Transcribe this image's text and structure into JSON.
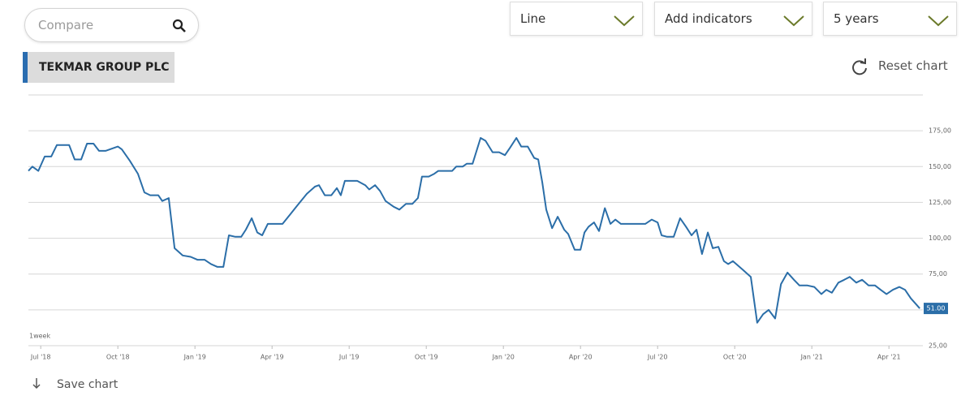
{
  "ui": {
    "compare_placeholder": "Compare",
    "chart_type": "Line",
    "indicators": "Add indicators",
    "period": "5 years",
    "instrument": "TEKMAR GROUP PLC",
    "reset": "Reset chart",
    "save": "Save chart"
  },
  "chart_data": {
    "type": "line",
    "interval_label": "1week",
    "color": "#2b6ea8",
    "grid": true,
    "xlim": [
      2018.46,
      2021.36
    ],
    "ylim": [
      25,
      200
    ],
    "xticks": [
      {
        "value": 2018.5,
        "label": "Jul '18"
      },
      {
        "value": 2018.75,
        "label": "Oct '18"
      },
      {
        "value": 2019.0,
        "label": "Jan '19"
      },
      {
        "value": 2019.25,
        "label": "Apr '19"
      },
      {
        "value": 2019.5,
        "label": "Jul '19"
      },
      {
        "value": 2019.75,
        "label": "Oct '19"
      },
      {
        "value": 2020.0,
        "label": "Jan '20"
      },
      {
        "value": 2020.25,
        "label": "Apr '20"
      },
      {
        "value": 2020.5,
        "label": "Jul '20"
      },
      {
        "value": 2020.75,
        "label": "Oct '20"
      },
      {
        "value": 2021.0,
        "label": "Jan '21"
      },
      {
        "value": 2021.25,
        "label": "Apr '21"
      }
    ],
    "yticks": [
      {
        "value": 25,
        "label": "25,00"
      },
      {
        "value": 50,
        "label": null
      },
      {
        "value": 75,
        "label": "75,00"
      },
      {
        "value": 100,
        "label": "100,00"
      },
      {
        "value": 125,
        "label": "125,00"
      },
      {
        "value": 150,
        "label": "150,00"
      },
      {
        "value": 175,
        "label": "175,00"
      },
      {
        "value": 200,
        "label": null
      }
    ],
    "current_value": 51,
    "current_value_label": "51.00",
    "x": [
      2018.46,
      2018.473,
      2018.492,
      2018.513,
      2018.534,
      2018.552,
      2018.592,
      2018.61,
      2018.631,
      2018.65,
      2018.671,
      2018.689,
      2018.71,
      2018.75,
      2018.763,
      2018.789,
      2018.815,
      2018.836,
      2018.855,
      2018.881,
      2018.894,
      2018.915,
      2018.934,
      2018.96,
      2018.986,
      2019.008,
      2019.031,
      2019.052,
      2019.073,
      2019.092,
      2019.11,
      2019.131,
      2019.15,
      2019.165,
      2019.184,
      2019.202,
      2019.218,
      2019.236,
      2019.263,
      2019.284,
      2019.31,
      2019.336,
      2019.363,
      2019.389,
      2019.402,
      2019.421,
      2019.442,
      2019.46,
      2019.473,
      2019.486,
      2019.526,
      2019.552,
      2019.565,
      2019.584,
      2019.6,
      2019.618,
      2019.644,
      2019.663,
      2019.684,
      2019.705,
      2019.723,
      2019.736,
      2019.758,
      2019.776,
      2019.789,
      2019.815,
      2019.834,
      2019.847,
      2019.868,
      2019.881,
      2019.9,
      2019.926,
      2019.942,
      2019.965,
      2019.986,
      2020.005,
      2020.021,
      2020.042,
      2020.058,
      2020.079,
      2020.1,
      2020.113,
      2020.126,
      2020.139,
      2020.158,
      2020.176,
      2020.197,
      2020.21,
      2020.231,
      2020.25,
      2020.263,
      2020.276,
      2020.294,
      2020.31,
      2020.329,
      2020.347,
      2020.363,
      2020.381,
      2020.421,
      2020.46,
      2020.481,
      2020.5,
      2020.513,
      2020.531,
      2020.552,
      2020.573,
      2020.592,
      2020.61,
      2020.626,
      2020.644,
      2020.663,
      2020.679,
      2020.697,
      2020.715,
      2020.729,
      2020.744,
      2020.776,
      2020.802,
      2020.823,
      2020.842,
      2020.86,
      2020.881,
      2020.9,
      2020.921,
      2020.942,
      2020.96,
      2020.986,
      2021.008,
      2021.031,
      2021.047,
      2021.065,
      2021.086,
      2021.105,
      2021.123,
      2021.144,
      2021.163,
      2021.184,
      2021.205,
      2021.223,
      2021.242,
      2021.263,
      2021.284,
      2021.302,
      2021.321,
      2021.35
    ],
    "values": [
      147,
      150,
      147,
      157,
      157,
      165,
      165,
      155,
      155,
      166,
      166,
      161,
      161,
      164,
      162,
      154,
      145,
      132,
      130,
      130,
      126,
      128,
      93,
      88,
      87,
      85,
      85,
      82,
      80,
      80,
      102,
      101,
      101,
      106,
      114,
      104,
      102,
      110,
      110,
      110,
      117,
      124,
      131,
      136,
      137,
      130,
      130,
      135,
      130,
      140,
      140,
      137,
      134,
      137,
      133,
      126,
      122,
      120,
      124,
      124,
      128,
      143,
      143,
      145,
      147,
      147,
      147,
      150,
      150,
      152,
      152,
      170,
      168,
      160,
      160,
      158,
      163,
      170,
      164,
      164,
      156,
      155,
      139,
      120,
      107,
      115,
      106,
      103,
      92,
      92,
      104,
      108,
      111,
      105,
      121,
      110,
      113,
      110,
      110,
      110,
      113,
      111,
      102,
      101,
      101,
      114,
      108,
      102,
      106,
      89,
      104,
      93,
      94,
      84,
      82,
      84,
      78,
      73,
      41,
      47,
      50,
      44,
      68,
      76,
      71,
      67,
      67,
      66,
      61,
      64,
      62,
      69,
      71,
      73,
      69,
      71,
      67,
      67,
      64,
      61,
      64,
      66,
      64,
      58,
      51
    ]
  }
}
